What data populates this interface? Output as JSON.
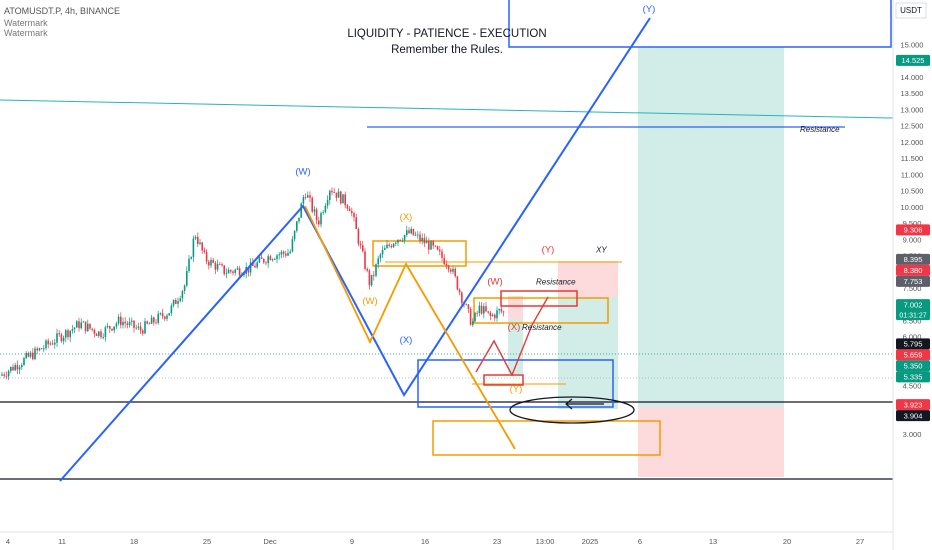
{
  "header": {
    "symbol_line": "ATOMUSDT.P, 4h, BINANCE",
    "watermark_1": "Watermark",
    "watermark_2": "Watermark"
  },
  "chart_data": {
    "type": "candlestick",
    "title": "LIQUIDITY - PATIENCE - EXECUTION",
    "subtitle": "Remember the Rules.",
    "currency": "USDT",
    "ylim": [
      2.7,
      16.0
    ],
    "y_ticks": [
      "3.000",
      "3.500",
      "4.000",
      "4.500",
      "5.000",
      "5.500",
      "6.000",
      "6.500",
      "7.000",
      "7.500",
      "8.000",
      "8.500",
      "9.000",
      "9.500",
      "10.000",
      "10.500",
      "11.000",
      "11.500",
      "12.000",
      "12.500",
      "13.000",
      "13.500",
      "14.000",
      "14.500",
      "15.000"
    ],
    "x_ticks": [
      "4",
      "11",
      "18",
      "25",
      "Dec",
      "9",
      "16",
      "23",
      "13:00",
      "2025",
      "6",
      "13",
      "20",
      "27"
    ],
    "price_badges": [
      {
        "label": "14.525",
        "color": "#089981",
        "value": 14.525
      },
      {
        "label": "9.306",
        "color": "#f23645",
        "value": 9.306
      },
      {
        "label": "8.395",
        "color": "#5d606b",
        "value": 8.395
      },
      {
        "label": "8.380",
        "color": "#f23645",
        "value": 8.38
      },
      {
        "label": "7.753",
        "color": "#5d606b",
        "value": 7.753
      },
      {
        "label": "7.002",
        "color": "#089981",
        "value": 7.002,
        "sub": "01:31:27"
      },
      {
        "label": "5.795",
        "color": "#131722",
        "value": 5.795
      },
      {
        "label": "5.659",
        "color": "#f23645",
        "value": 5.659
      },
      {
        "label": "5.350",
        "color": "#089981",
        "value": 5.35
      },
      {
        "label": "5.335",
        "color": "#089981",
        "value": 5.335
      },
      {
        "label": "3.923",
        "color": "#f23645",
        "value": 3.923
      },
      {
        "label": "3.904",
        "color": "#131722",
        "value": 3.904
      }
    ],
    "annotations": [
      {
        "text": "Resistance",
        "price": 12.3
      },
      {
        "text": "Resistance",
        "price": 7.6
      },
      {
        "text": "Resistance",
        "price": 6.2
      },
      {
        "text": "XY",
        "price": 8.6
      }
    ],
    "wave_labels": [
      {
        "text": "(W)",
        "price": 11.0,
        "color": "#2962ff"
      },
      {
        "text": "(X)",
        "price": 9.6,
        "color": "#f59b00"
      },
      {
        "text": "(W)",
        "price": 7.0,
        "color": "#f59b00"
      },
      {
        "text": "(X)",
        "price": 5.8,
        "color": "#2962ff"
      },
      {
        "text": "(Y)",
        "price": 8.6,
        "color": "#e53935"
      },
      {
        "text": "(W)",
        "price": 7.6,
        "color": "#e53935"
      },
      {
        "text": "(X)",
        "price": 6.2,
        "color": "#e53935"
      },
      {
        "text": "(Y)",
        "price": 4.3,
        "color": "#f59b00"
      },
      {
        "text": "(Y)",
        "price": 16.0,
        "color": "#2962ff"
      }
    ]
  }
}
